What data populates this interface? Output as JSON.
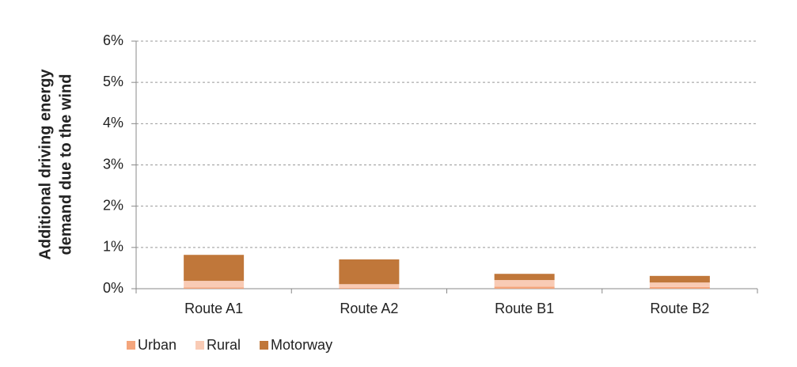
{
  "chart_data": {
    "type": "stacked_bar",
    "y_label": [
      "Additional driving energy",
      "demand  due to the wind"
    ],
    "categories": [
      "Route A1",
      "Route A2",
      "Route B1",
      "Route B2"
    ],
    "series": [
      {
        "name": "Urban",
        "color": "#f4a57c",
        "values": [
          0.03,
          0.02,
          0.05,
          0.04
        ]
      },
      {
        "name": "Rural",
        "color": "#f9cbb5",
        "values": [
          0.16,
          0.09,
          0.16,
          0.11
        ]
      },
      {
        "name": "Motorway",
        "color": "#c0773a",
        "values": [
          0.63,
          0.6,
          0.15,
          0.16
        ]
      }
    ],
    "ylim": [
      0,
      6
    ],
    "yticks": [
      {
        "value": 0,
        "label": "0%"
      },
      {
        "value": 1,
        "label": "1%"
      },
      {
        "value": 2,
        "label": "2%"
      },
      {
        "value": 3,
        "label": "3%"
      },
      {
        "value": 4,
        "label": "4%"
      },
      {
        "value": 5,
        "label": "5%"
      },
      {
        "value": 6,
        "label": "6%"
      }
    ],
    "grid": true,
    "legend": "bottom-left"
  }
}
